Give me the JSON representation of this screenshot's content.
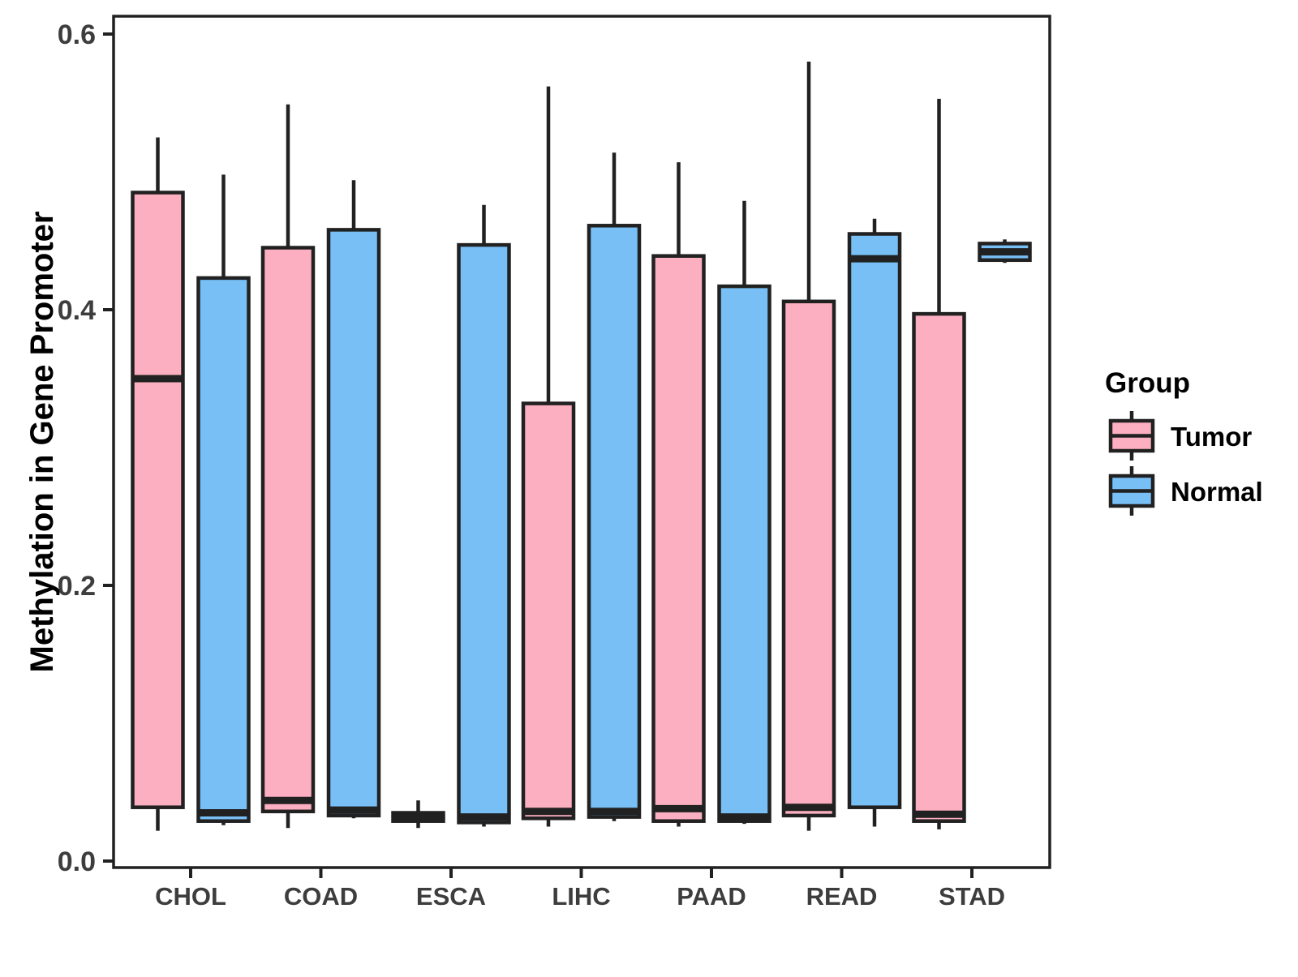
{
  "chart_data": {
    "type": "boxplot",
    "title": "",
    "xlabel": "",
    "ylabel": "Methylation in Gene Promoter",
    "ylim": [
      0,
      0.6
    ],
    "yticks": [
      0,
      0.2,
      0.4,
      0.6
    ],
    "ytick_labels": [
      "0.0",
      "0.2",
      "0.4",
      "0.6"
    ],
    "grid": "off",
    "categories": [
      "CHOL",
      "COAD",
      "ESCA",
      "LIHC",
      "PAAD",
      "READ",
      "STAD"
    ],
    "groups": [
      {
        "name": "Tumor",
        "fill": "#FCAFC0"
      },
      {
        "name": "Normal",
        "fill": "#77BFF5"
      }
    ],
    "legend": {
      "title": "Group",
      "position": "right"
    },
    "colors": {
      "stroke": "#212121",
      "panel_border": "#212121",
      "axis_text": "#3d3d3d"
    },
    "series": [
      {
        "group": "Tumor",
        "boxes": [
          {
            "category": "CHOL",
            "whisker_low": 0.022,
            "q1": 0.039,
            "median": 0.35,
            "q3": 0.485,
            "whisker_high": 0.525
          },
          {
            "category": "COAD",
            "whisker_low": 0.024,
            "q1": 0.036,
            "median": 0.044,
            "q3": 0.445,
            "whisker_high": 0.549
          },
          {
            "category": "ESCA",
            "whisker_low": 0.024,
            "q1": 0.029,
            "median": 0.032,
            "q3": 0.035,
            "whisker_high": 0.044
          },
          {
            "category": "LIHC",
            "whisker_low": 0.025,
            "q1": 0.031,
            "median": 0.036,
            "q3": 0.332,
            "whisker_high": 0.562
          },
          {
            "category": "PAAD",
            "whisker_low": 0.025,
            "q1": 0.029,
            "median": 0.038,
            "q3": 0.439,
            "whisker_high": 0.507
          },
          {
            "category": "READ",
            "whisker_low": 0.022,
            "q1": 0.033,
            "median": 0.039,
            "q3": 0.406,
            "whisker_high": 0.58
          },
          {
            "category": "STAD",
            "whisker_low": 0.023,
            "q1": 0.029,
            "median": 0.034,
            "q3": 0.397,
            "whisker_high": 0.553
          }
        ]
      },
      {
        "group": "Normal",
        "boxes": [
          {
            "category": "CHOL",
            "whisker_low": 0.026,
            "q1": 0.029,
            "median": 0.035,
            "q3": 0.423,
            "whisker_high": 0.498
          },
          {
            "category": "COAD",
            "whisker_low": 0.031,
            "q1": 0.033,
            "median": 0.037,
            "q3": 0.458,
            "whisker_high": 0.494
          },
          {
            "category": "ESCA",
            "whisker_low": 0.025,
            "q1": 0.028,
            "median": 0.032,
            "q3": 0.447,
            "whisker_high": 0.476
          },
          {
            "category": "LIHC",
            "whisker_low": 0.029,
            "q1": 0.032,
            "median": 0.036,
            "q3": 0.461,
            "whisker_high": 0.514
          },
          {
            "category": "PAAD",
            "whisker_low": 0.027,
            "q1": 0.029,
            "median": 0.032,
            "q3": 0.417,
            "whisker_high": 0.479
          },
          {
            "category": "READ",
            "whisker_low": 0.025,
            "q1": 0.039,
            "median": 0.437,
            "q3": 0.455,
            "whisker_high": 0.466
          },
          {
            "category": "STAD",
            "whisker_low": 0.434,
            "q1": 0.436,
            "median": 0.442,
            "q3": 0.448,
            "whisker_high": 0.451
          }
        ]
      }
    ]
  }
}
